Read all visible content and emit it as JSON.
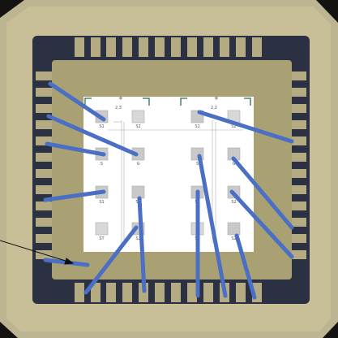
{
  "pads_left": [
    {
      "label_top": "2,3",
      "label": "S1"
    },
    {
      "label": "S2"
    },
    {
      "label": "S"
    },
    {
      "label": "G"
    },
    {
      "label": "S1"
    },
    {
      "label": "S2"
    },
    {
      "label": "ST"
    },
    {
      "label": "S2"
    }
  ],
  "pads_right": [
    {
      "label_top": "2,2",
      "label": "S1"
    },
    {
      "label": "S2"
    },
    {
      "label": "S"
    },
    {
      "label": "G"
    },
    {
      "label": "S1"
    },
    {
      "label": "S2"
    },
    {
      "label": "ST"
    },
    {
      "label": "S2"
    }
  ],
  "plus_marks": [
    "+",
    "+"
  ]
}
